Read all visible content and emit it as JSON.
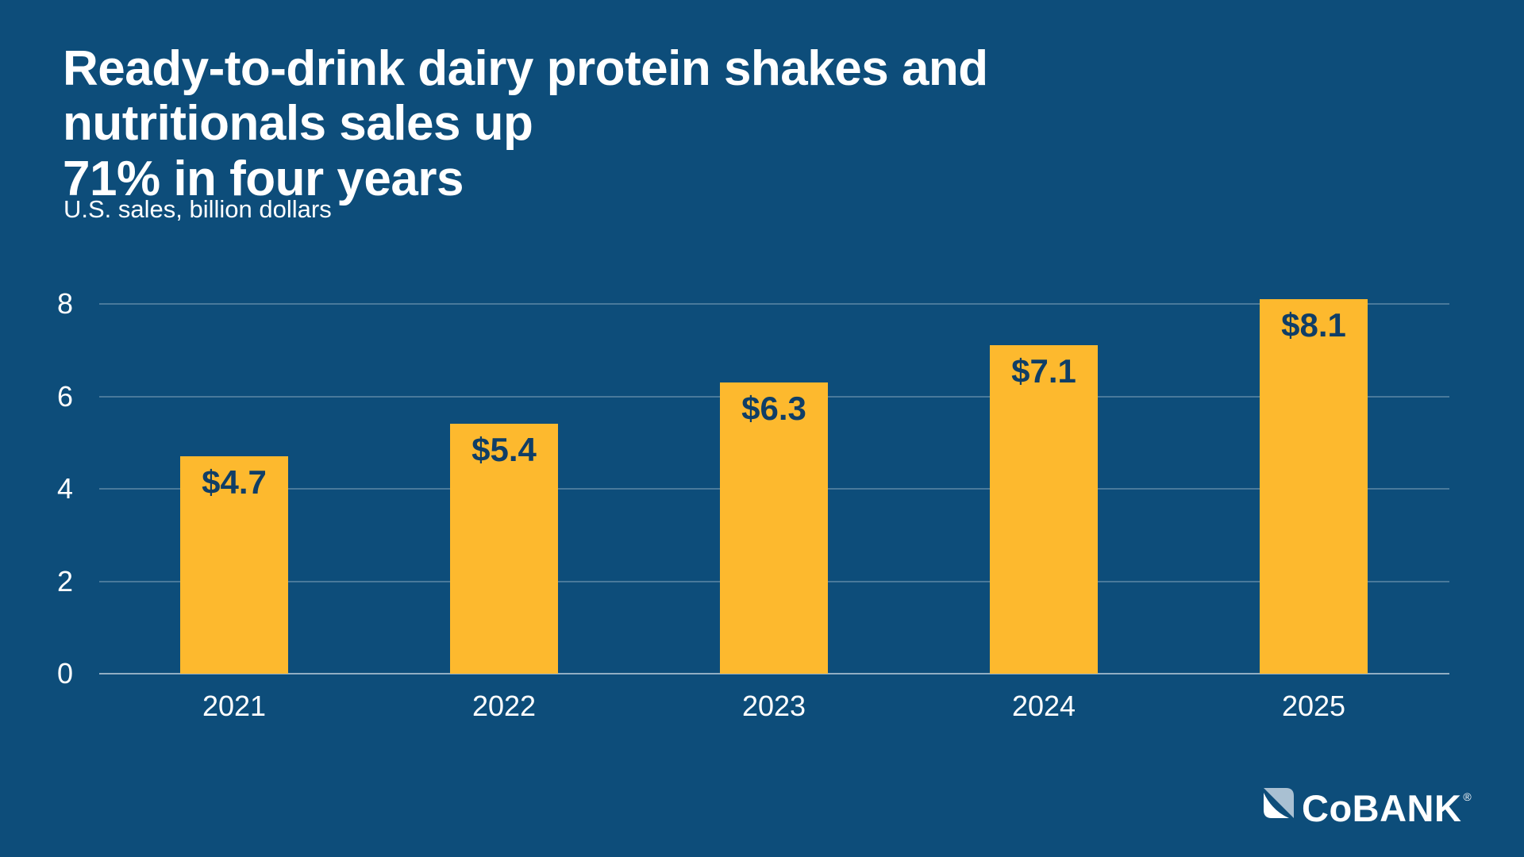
{
  "title": "Ready-to-drink dairy protein shakes and nutritionals sales up\n71% in four years",
  "subtitle": "U.S. sales, billion dollars",
  "colors": {
    "background": "#0d4d7a",
    "bar": "#fdb92e",
    "bar_label_text": "#103e66",
    "axis_text": "#ffffff",
    "gridline": "rgba(255,255,255,0.25)",
    "baseline": "rgba(255,255,255,0.55)",
    "logo_light_blue": "#a9c0d2",
    "logo_white": "#ffffff"
  },
  "chart_data": {
    "type": "bar",
    "title": "Ready-to-drink dairy protein shakes and nutritionals sales up 71% in four years",
    "subtitle": "U.S. sales, billion dollars",
    "categories": [
      "2021",
      "2022",
      "2023",
      "2024",
      "2025"
    ],
    "values": [
      4.7,
      5.4,
      6.3,
      7.1,
      8.1
    ],
    "bar_labels": [
      "$4.7",
      "$5.4",
      "$6.3",
      "$7.1",
      "$8.1"
    ],
    "xlabel": "",
    "ylabel": "U.S. sales, billion dollars",
    "yticks": [
      0,
      2,
      4,
      6,
      8
    ],
    "ylim": [
      0,
      8.6
    ],
    "grid": true,
    "legend": false,
    "bar_color": "#fdb92e"
  },
  "logo": {
    "text": "CoBANK",
    "registered": "®",
    "icon": "cobank-diagonal-square-icon"
  }
}
